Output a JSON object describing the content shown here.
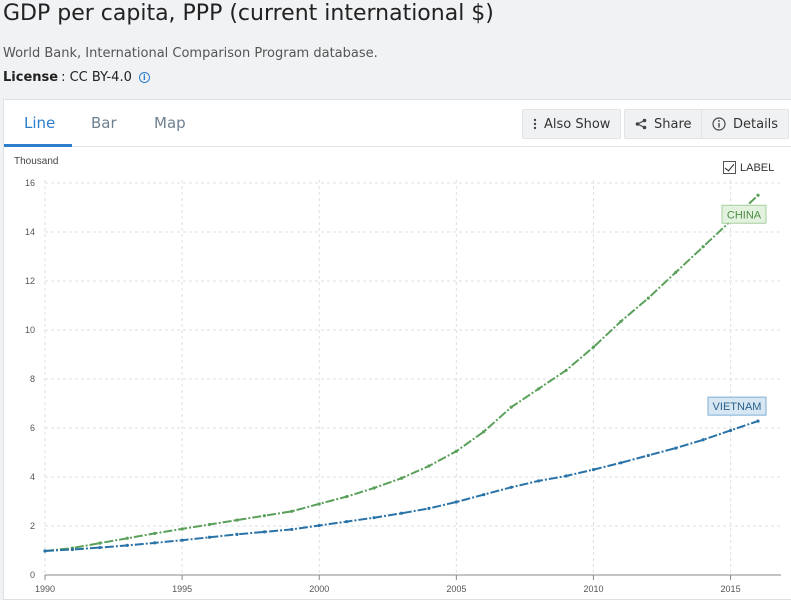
{
  "header": {
    "title": "GDP per capita, PPP (current international $)",
    "source": "World Bank, International Comparison Program database.",
    "license_label": "License",
    "license_value": ": CC BY-4.0",
    "info_icon": "info-icon"
  },
  "tabs": [
    {
      "label": "Line",
      "active": true
    },
    {
      "label": "Bar",
      "active": false
    },
    {
      "label": "Map",
      "active": false
    }
  ],
  "toolbar": {
    "also_show": {
      "label": "Also Show",
      "icon": "vertical-dots-icon"
    },
    "share": {
      "label": "Share",
      "icon": "share-icon"
    },
    "details": {
      "label": "Details",
      "icon": "info-circle-icon"
    }
  },
  "label_toggle": {
    "label": "LABEL",
    "checked": true
  },
  "colors": {
    "accent": "#2b7ecb",
    "china": "#5aa05a",
    "vietnam": "#2a73a8"
  },
  "chart_data": {
    "type": "line",
    "title": "",
    "xlabel": "",
    "ylabel": "Thousand",
    "xlim": [
      1990,
      2016
    ],
    "ylim": [
      0,
      16
    ],
    "y_ticks": [
      0,
      2,
      4,
      6,
      8,
      10,
      12,
      14,
      16
    ],
    "x_ticks": [
      1990,
      1995,
      2000,
      2005,
      2010,
      2015
    ],
    "grid": true,
    "x": [
      1990,
      1991,
      1992,
      1993,
      1994,
      1995,
      1996,
      1997,
      1998,
      1999,
      2000,
      2001,
      2002,
      2003,
      2004,
      2005,
      2006,
      2007,
      2008,
      2009,
      2010,
      2011,
      2012,
      2013,
      2014,
      2015,
      2016
    ],
    "series": [
      {
        "name": "CHINA",
        "values": [
          0.98,
          1.1,
          1.3,
          1.5,
          1.7,
          1.88,
          2.06,
          2.24,
          2.42,
          2.6,
          2.9,
          3.2,
          3.55,
          3.95,
          4.45,
          5.05,
          5.85,
          6.85,
          7.6,
          8.35,
          9.3,
          10.35,
          11.3,
          12.35,
          13.4,
          14.45,
          15.5
        ]
      },
      {
        "name": "VIETNAM",
        "values": [
          0.98,
          1.04,
          1.12,
          1.21,
          1.31,
          1.42,
          1.54,
          1.66,
          1.76,
          1.86,
          2.02,
          2.18,
          2.34,
          2.52,
          2.72,
          2.98,
          3.28,
          3.58,
          3.84,
          4.04,
          4.3,
          4.58,
          4.88,
          5.18,
          5.52,
          5.9,
          6.28
        ]
      }
    ]
  }
}
